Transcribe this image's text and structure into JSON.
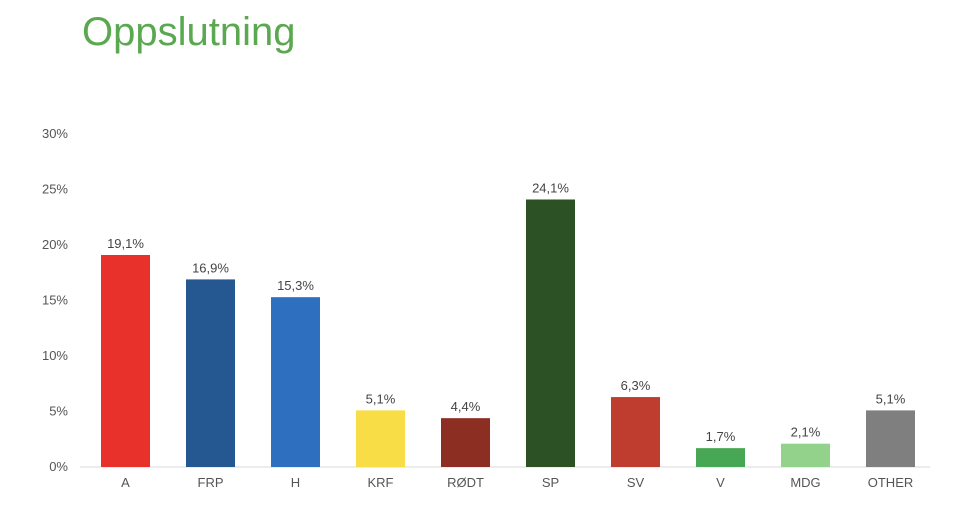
{
  "header": {
    "title": "Oppslutning"
  },
  "chart_data": {
    "type": "bar",
    "title": "Oppslutning",
    "xlabel": "",
    "ylabel": "",
    "ylim": [
      0,
      30
    ],
    "yticks": [
      "0%",
      "5%",
      "10%",
      "15%",
      "20%",
      "25%",
      "30%"
    ],
    "ytick_values": [
      0,
      5,
      10,
      15,
      20,
      25,
      30
    ],
    "grid": false,
    "categories": [
      "A",
      "FRP",
      "H",
      "KRF",
      "RØDT",
      "SP",
      "SV",
      "V",
      "MDG",
      "OTHER"
    ],
    "values": [
      19.1,
      16.9,
      15.3,
      5.1,
      4.4,
      24.1,
      6.3,
      1.7,
      2.1,
      5.1
    ],
    "data_labels": [
      "19,1%",
      "16,9%",
      "15,3%",
      "5,1%",
      "4,4%",
      "24,1%",
      "6,3%",
      "1,7%",
      "2,1%",
      "5,1%"
    ],
    "colors": [
      "#e8312a",
      "#255891",
      "#2e70bf",
      "#f9dd47",
      "#8d2e23",
      "#2c5124",
      "#be3d2e",
      "#48a754",
      "#93d28b",
      "#7f7f7f"
    ]
  }
}
